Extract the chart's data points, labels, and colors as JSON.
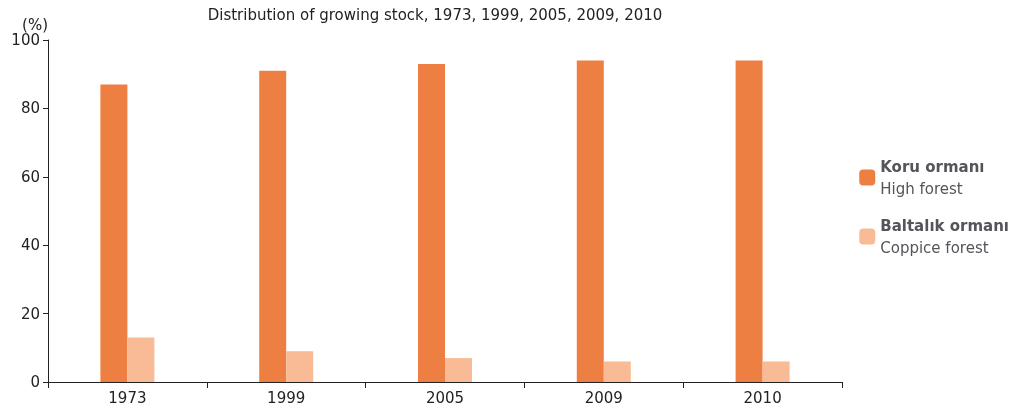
{
  "chart_data": {
    "type": "bar",
    "title": "Distribution of growing stock, 1973, 1999, 2005, 2009, 2010",
    "ylabel": "(%)",
    "categories": [
      "1973",
      "1999",
      "2005",
      "2009",
      "2010"
    ],
    "series": [
      {
        "name": "Koru ormanı\nHigh forest",
        "color": "#ed7f42",
        "values": [
          87,
          91,
          93,
          94,
          94
        ]
      },
      {
        "name": "Baltalık ormanı\nCoppice forest",
        "color": "#f8bb95",
        "values": [
          13,
          9,
          7,
          6,
          6
        ]
      }
    ],
    "ylim": [
      0,
      100
    ],
    "yticks": [
      0,
      20,
      40,
      60,
      80,
      100
    ],
    "grid": false,
    "legend": "right"
  }
}
